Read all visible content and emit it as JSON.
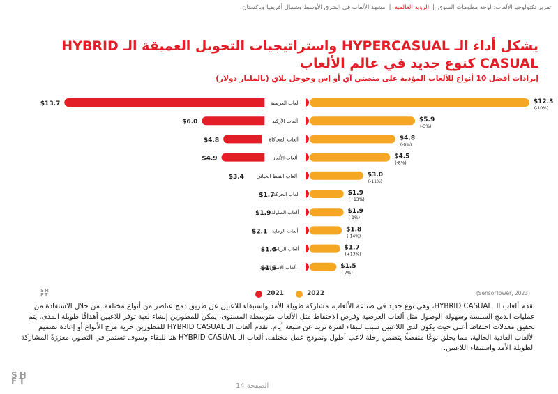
{
  "breadcrumb": {
    "part1": "تقرير تكنولوجيا الألعاب: لوحة معلومات السوق",
    "part2": "الرؤية العالمية",
    "part3": "مشهد الألعاب في الشرق الأوسط وشمال أفريقيا وباكستان",
    "separator": "|"
  },
  "title": "يشكل أداء الـ HYPERCASUAL واستراتيجيات التحويل العميقة الـ HYBRID CASUAL كنوع جديد في عالم الألعاب",
  "subtitle": "إيرادات أفضل 10 أنواع للألعاب المؤدية على منصتي آي أو إس وجوجل بلاي (بالمليار دولار)",
  "chart_data": {
    "type": "bar",
    "orientation": "horizontal-butterfly",
    "value_unit": "$ billion",
    "categories": [
      "ألعاب العرضية",
      "ألعاب الأركيد",
      "ألعاب المحاكاة",
      "ألعاب الألغاز",
      "ألعاب النمط الحياتي",
      "ألعاب الحركة",
      "ألعاب الطاولة",
      "ألعاب الرماية",
      "ألعاب الرياضة",
      "ألعاب الاستراتيجية"
    ],
    "series": [
      {
        "name": "2021",
        "color": "#e41e26",
        "values": [
          13.7,
          6.0,
          4.8,
          4.9,
          3.4,
          1.7,
          1.9,
          2.1,
          1.6,
          1.6
        ],
        "labels": [
          "$13.7",
          "$6.0",
          "$4.8",
          "$4.9",
          "$3.4",
          "$1.7",
          "$1.9",
          "$2.1",
          "$1.6",
          "$1.6"
        ]
      },
      {
        "name": "2022",
        "color": "#f5a623",
        "values": [
          12.3,
          5.9,
          4.8,
          4.5,
          3.0,
          1.9,
          1.9,
          1.8,
          1.7,
          1.5
        ],
        "labels": [
          "$12.3",
          "$5.9",
          "$4.8",
          "$4.5",
          "$3.0",
          "$1.9",
          "$1.9",
          "$1.8",
          "$1.7",
          "$1.5"
        ],
        "changes": [
          "(-10%)",
          "(-3%)",
          "(-0%)",
          "(-8%)",
          "(-11%)",
          "(+13%)",
          "(-1%)",
          "(-14%)",
          "(+13%)",
          "(-7%)"
        ]
      }
    ],
    "legend_position": "bottom-center"
  },
  "legend": {
    "y2021": "2021",
    "y2022": "2022",
    "color_2021": "#e41e26",
    "color_2022": "#f5a623"
  },
  "source": "(SensorTower, 2023)",
  "body_text": "تقدم ألعاب الـ HYBRID CASUAL، وهي نوع جديد في صناعة الألعاب، مشاركة طويلة الأمد واستبقاء للاعبين عن طريق دمج عناصر من أنواع مختلفة. من خلال الاستفادة من عمليات الدمج السلسة وسهولة الوصول مثل ألعاب العرضية وفرص الاحتفاظ مثل الألعاب متوسطة المستوى، يمكن للمطورين إنشاء لعبة توفر للاعبين أهدافًا طويلة المدى. يتم تحقيق معدلات احتفاظ أعلى حيث يكون لدى اللاعبين سبب للبقاء لفترة تزيد عن سبعة أيام. تقدم ألعاب الـ HYBRID CASUAL للمطورين حرية مزج الأنواع أو إعادة تصميم الألعاب العادية الحالية، مما يخلق نوعًا منفصلًا يتضمن رحلة لاعب أطول ونموذج عمل مختلف. ألعاب الـ HYBRID CASUAL هنا للبقاء وسوف تستمر في التطور، معززةً المشاركة الطويلة الأمد واستبقاء اللاعبين.",
  "logo_top": "SH",
  "logo_bottom": "FT",
  "page_label": "الصفحة 14"
}
